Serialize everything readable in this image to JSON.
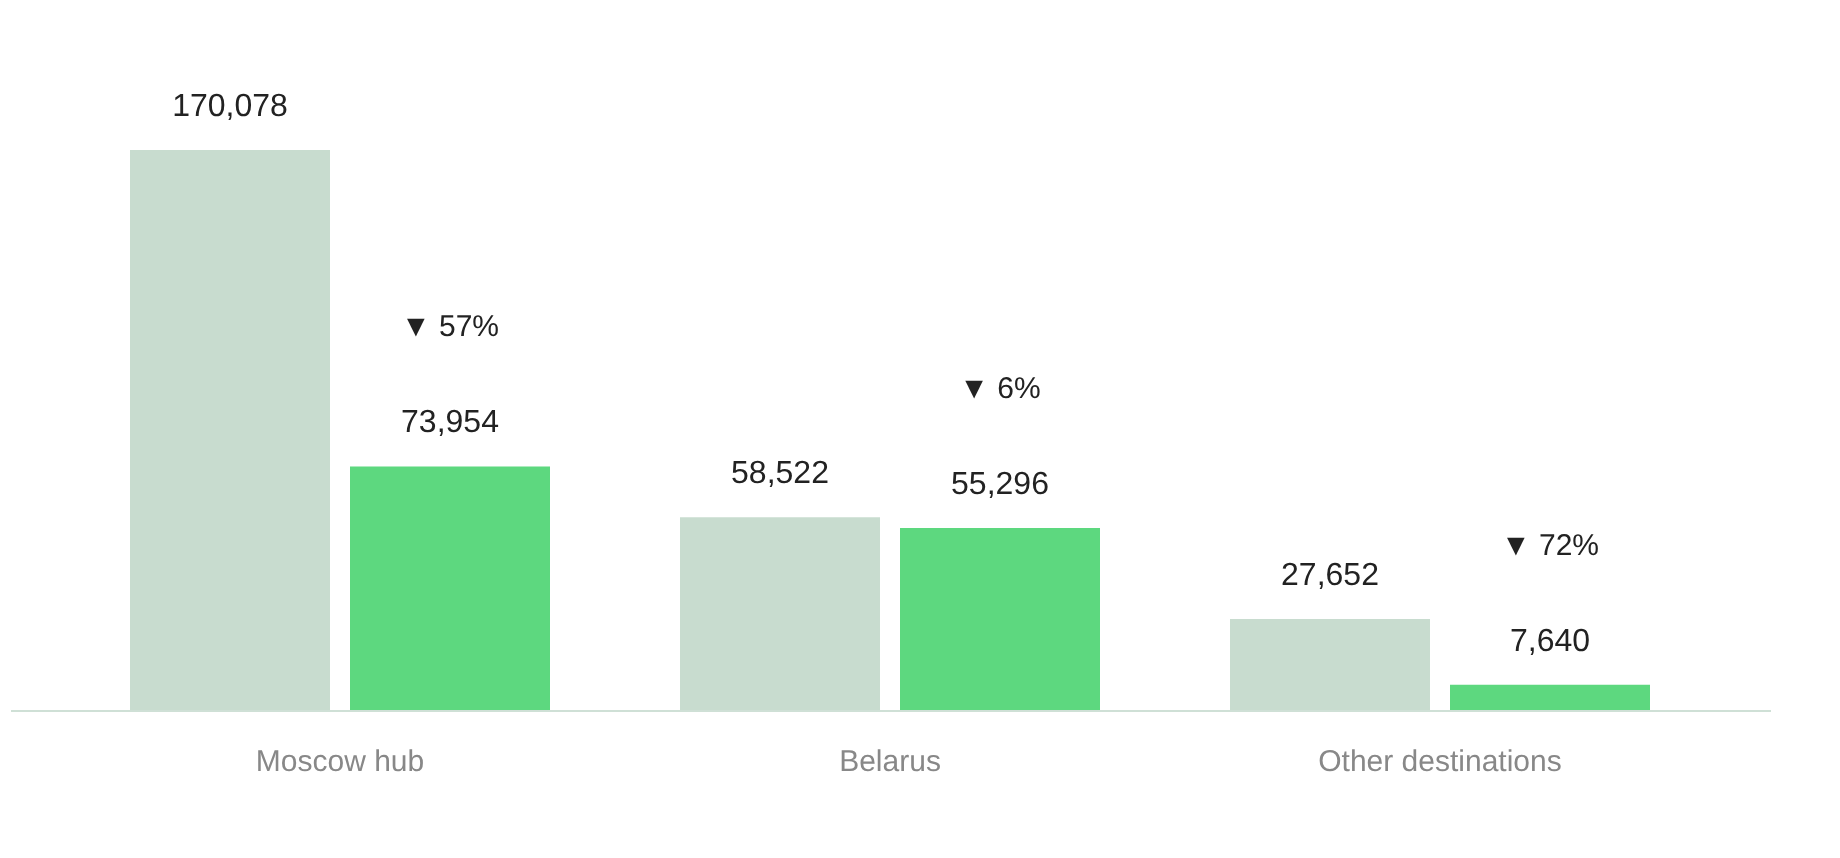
{
  "chart_data": {
    "type": "bar",
    "categories": [
      "Moscow hub",
      "Belarus",
      "Other destinations"
    ],
    "series": [
      {
        "color": "#c8dccf",
        "values": [
          170078,
          58522,
          27652
        ],
        "value_labels": [
          "170,078",
          "58,522",
          "27,652"
        ]
      },
      {
        "color": "#5dd87f",
        "values": [
          73954,
          55296,
          7640
        ],
        "value_labels": [
          "73,954",
          "55,296",
          "7,640"
        ]
      }
    ],
    "annotations": [
      "▼ 57%",
      "▼ 6%",
      "▼ 72%"
    ],
    "grid": false
  }
}
